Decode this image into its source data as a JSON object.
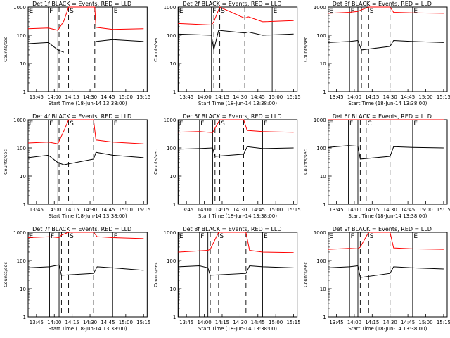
{
  "chart_data": [
    {
      "type": "line",
      "title": "Det 1f BLACK = Events, RED = LLD",
      "xlabel": "Start Time (18-Jun-14 13:38:00)",
      "ylabel": "Counts/sec",
      "xticks": [
        "13:45",
        "14:00",
        "14:15",
        "14:30",
        "14:45",
        "15:00",
        "15:15"
      ],
      "ylog": true,
      "ylim": [
        1,
        1000
      ],
      "yticks": [
        "1",
        "10",
        "100",
        "1000"
      ],
      "markers": [
        {
          "label": "E",
          "time": "13:38",
          "style": "solid"
        },
        {
          "label": "F",
          "time": "13:55",
          "style": "solid"
        },
        {
          "label": "",
          "time": "14:03",
          "style": "solid"
        },
        {
          "label": "",
          "time": "14:04",
          "style": "dashed"
        },
        {
          "label": "S",
          "time": "14:12",
          "style": "dashed"
        },
        {
          "label": "",
          "time": "14:34",
          "style": "dashed"
        },
        {
          "label": "E",
          "time": "14:49",
          "style": "solid"
        }
      ],
      "series": [
        {
          "color": "#ff0000",
          "time": [
            "13:38",
            "13:55",
            "14:03",
            "14:08",
            "14:12",
            "14:13",
            "14:34",
            "14:35",
            "14:49",
            "15:15"
          ],
          "values": [
            170,
            180,
            150,
            320,
            1000,
            1000,
            1000,
            190,
            160,
            170
          ]
        },
        {
          "color": "#000000",
          "time": [
            "13:38",
            "13:55",
            "14:03",
            "14:08",
            "14:12",
            "14:34",
            "14:35",
            "14:49",
            "15:15"
          ],
          "values": [
            50,
            55,
            30,
            25,
            null,
            null,
            60,
            70,
            60
          ]
        }
      ]
    },
    {
      "type": "line",
      "title": "Det 2f BLACK = Events, RED = LLD",
      "xlabel": "Start Time (18-Jun-14 13:38:00)",
      "ylabel": "Counts/sec",
      "xticks": [
        "13:45",
        "14:00",
        "14:15",
        "14:30",
        "14:45",
        "15:00",
        "15:15"
      ],
      "ylog": true,
      "ylim": [
        1,
        1000
      ],
      "yticks": [
        "1",
        "10",
        "100",
        "1000"
      ],
      "markers": [
        {
          "label": "E",
          "time": "13:38",
          "style": "solid"
        },
        {
          "label": "F",
          "time": "14:06",
          "style": "solid"
        },
        {
          "label": "",
          "time": "14:08",
          "style": "dashed"
        },
        {
          "label": "S",
          "time": "14:13",
          "style": "dashed"
        },
        {
          "label": "",
          "time": "14:34",
          "style": "dashed"
        },
        {
          "label": "E",
          "time": "14:57",
          "style": "solid"
        }
      ],
      "series": [
        {
          "color": "#ff0000",
          "time": [
            "13:38",
            "14:06",
            "14:08",
            "14:12",
            "14:13",
            "14:34",
            "14:37",
            "14:49",
            "15:15"
          ],
          "values": [
            260,
            230,
            300,
            800,
            1000,
            400,
            450,
            300,
            330
          ]
        },
        {
          "color": "#000000",
          "time": [
            "13:38",
            "14:06",
            "14:08",
            "14:12",
            "14:34",
            "14:37",
            "14:49",
            "15:15"
          ],
          "values": [
            110,
            100,
            30,
            150,
            120,
            130,
            100,
            110
          ]
        }
      ]
    },
    {
      "type": "line",
      "title": "Det 3f BLACK = Events, RED = LLD",
      "xlabel": "Start Time (18-Jun-14 13:38:00)",
      "ylabel": "Counts/sec",
      "xticks": [
        "13:45",
        "14:00",
        "14:15",
        "14:30",
        "14:45",
        "15:00",
        "15:15"
      ],
      "ylog": true,
      "ylim": [
        1,
        1000
      ],
      "yticks": [
        "1",
        "10",
        "100",
        "1000"
      ],
      "markers": [
        {
          "label": "E",
          "time": "13:38",
          "style": "solid"
        },
        {
          "label": "F",
          "time": "13:56",
          "style": "solid"
        },
        {
          "label": "",
          "time": "14:03",
          "style": "solid"
        },
        {
          "label": "",
          "time": "14:06",
          "style": "dashed"
        },
        {
          "label": "S",
          "time": "14:12",
          "style": "dashed"
        },
        {
          "label": "",
          "time": "14:30",
          "style": "dashed"
        },
        {
          "label": "E",
          "time": "14:49",
          "style": "solid"
        }
      ],
      "series": [
        {
          "color": "#ff0000",
          "time": [
            "13:38",
            "13:56",
            "14:03",
            "14:06",
            "14:12",
            "14:30",
            "14:33",
            "14:49",
            "15:15"
          ],
          "values": [
            600,
            650,
            700,
            800,
            1000,
            1000,
            650,
            620,
            600
          ]
        },
        {
          "color": "#000000",
          "time": [
            "13:38",
            "13:56",
            "14:03",
            "14:06",
            "14:30",
            "14:33",
            "14:49",
            "15:15"
          ],
          "values": [
            55,
            60,
            65,
            30,
            40,
            65,
            60,
            55
          ]
        }
      ]
    },
    {
      "type": "line",
      "title": "Det 4f BLACK = Events, RED = LLD",
      "xlabel": "Start Time (18-Jun-14 13:38:00)",
      "ylabel": "Counts/sec",
      "xticks": [
        "13:45",
        "14:00",
        "14:15",
        "14:30",
        "14:45",
        "15:00",
        "15:15"
      ],
      "ylog": true,
      "ylim": [
        1,
        1000
      ],
      "yticks": [
        "1",
        "10",
        "100",
        "1000"
      ],
      "markers": [
        {
          "label": "E",
          "time": "13:38",
          "style": "solid"
        },
        {
          "label": "F",
          "time": "13:55",
          "style": "solid"
        },
        {
          "label": "",
          "time": "14:03",
          "style": "solid"
        },
        {
          "label": "",
          "time": "14:04",
          "style": "dashed"
        },
        {
          "label": "S",
          "time": "14:12",
          "style": "dashed"
        },
        {
          "label": "",
          "time": "14:33",
          "style": "dashed"
        },
        {
          "label": "E",
          "time": "14:49",
          "style": "solid"
        }
      ],
      "series": [
        {
          "color": "#ff0000",
          "time": [
            "13:38",
            "13:55",
            "14:03",
            "14:08",
            "14:12",
            "14:33",
            "14:35",
            "14:49",
            "15:15"
          ],
          "values": [
            150,
            160,
            140,
            400,
            1000,
            1000,
            190,
            160,
            140
          ]
        },
        {
          "color": "#000000",
          "time": [
            "13:38",
            "13:55",
            "14:03",
            "14:08",
            "14:33",
            "14:35",
            "14:49",
            "15:15"
          ],
          "values": [
            45,
            55,
            30,
            25,
            40,
            70,
            55,
            45
          ]
        }
      ]
    },
    {
      "type": "line",
      "title": "Det 5f BLACK = Events, RED = LLD",
      "xlabel": "Start Time (18-Jun-14 13:38:00)",
      "ylabel": "Counts/sec",
      "xticks": [
        "13:45",
        "14:00",
        "14:15",
        "14:30",
        "14:45",
        "15:00",
        "15:15"
      ],
      "ylog": true,
      "ylim": [
        1,
        1000
      ],
      "yticks": [
        "1",
        "10",
        "100",
        "1000"
      ],
      "markers": [
        {
          "label": "E",
          "time": "13:38",
          "style": "solid"
        },
        {
          "label": "F",
          "time": "13:56",
          "style": "solid"
        },
        {
          "label": "",
          "time": "14:07",
          "style": "solid"
        },
        {
          "label": "",
          "time": "14:09",
          "style": "dashed"
        },
        {
          "label": "S",
          "time": "14:13",
          "style": "dashed"
        },
        {
          "label": "",
          "time": "14:33",
          "style": "dashed"
        },
        {
          "label": "E",
          "time": "14:49",
          "style": "solid"
        }
      ],
      "series": [
        {
          "color": "#ff0000",
          "time": [
            "13:38",
            "13:56",
            "14:07",
            "14:09",
            "14:13",
            "14:33",
            "14:36",
            "14:49",
            "15:15"
          ],
          "values": [
            360,
            380,
            350,
            500,
            1000,
            1000,
            420,
            380,
            360
          ]
        },
        {
          "color": "#000000",
          "time": [
            "13:38",
            "13:56",
            "14:07",
            "14:09",
            "14:33",
            "14:36",
            "14:49",
            "15:15"
          ],
          "values": [
            90,
            95,
            100,
            50,
            60,
            110,
            95,
            100
          ]
        }
      ]
    },
    {
      "type": "line",
      "title": "Det 6f BLACK = Events, RED = LLD",
      "xlabel": "Start Time (18-Jun-14 13:38:00)",
      "ylabel": "Counts/sec",
      "xticks": [
        "13:45",
        "14:00",
        "14:15",
        "14:30",
        "14:45",
        "15:00",
        "15:15"
      ],
      "ylog": true,
      "ylim": [
        1,
        1000
      ],
      "yticks": [
        "1",
        "10",
        "100",
        "1000"
      ],
      "markers": [
        {
          "label": "E",
          "time": "13:38",
          "style": "solid"
        },
        {
          "label": "F",
          "time": "13:55",
          "style": "solid"
        },
        {
          "label": "",
          "time": "14:03",
          "style": "solid"
        },
        {
          "label": "",
          "time": "14:05",
          "style": "dashed"
        },
        {
          "label": "C",
          "time": "14:10",
          "style": "dashed"
        },
        {
          "label": "",
          "time": "14:30",
          "style": "dashed"
        },
        {
          "label": "E",
          "time": "14:49",
          "style": "solid"
        }
      ],
      "series": [
        {
          "color": "#ff0000",
          "time": [
            "13:38",
            "15:15"
          ],
          "values": [
            1000,
            1000
          ]
        },
        {
          "color": "#000000",
          "time": [
            "13:38",
            "13:55",
            "14:03",
            "14:05",
            "14:30",
            "14:33",
            "14:49",
            "15:15"
          ],
          "values": [
            105,
            120,
            115,
            40,
            50,
            110,
            105,
            100
          ]
        }
      ]
    },
    {
      "type": "line",
      "title": "Det 7f BLACK = Events, RED = LLD",
      "xlabel": "Start Time (18-Jun-14 13:38:00)",
      "ylabel": "Counts/sec",
      "xticks": [
        "13:45",
        "14:00",
        "14:15",
        "14:30",
        "14:45",
        "15:00",
        "15:15"
      ],
      "ylog": true,
      "ylim": [
        1,
        1000
      ],
      "yticks": [
        "1",
        "10",
        "100",
        "1000"
      ],
      "markers": [
        {
          "label": "E",
          "time": "13:38",
          "style": "solid"
        },
        {
          "label": "F",
          "time": "13:56",
          "style": "solid"
        },
        {
          "label": "",
          "time": "14:04",
          "style": "solid"
        },
        {
          "label": "",
          "time": "14:06",
          "style": "dashed"
        },
        {
          "label": "S",
          "time": "14:12",
          "style": "dashed"
        },
        {
          "label": "",
          "time": "14:33",
          "style": "dashed"
        },
        {
          "label": "E",
          "time": "14:49",
          "style": "solid"
        }
      ],
      "series": [
        {
          "color": "#ff0000",
          "time": [
            "13:38",
            "13:56",
            "14:04",
            "14:06",
            "14:12",
            "14:33",
            "14:36",
            "14:49",
            "15:15"
          ],
          "values": [
            650,
            700,
            650,
            800,
            1000,
            1000,
            700,
            650,
            600
          ]
        },
        {
          "color": "#000000",
          "time": [
            "13:38",
            "13:56",
            "14:04",
            "14:06",
            "14:33",
            "14:36",
            "14:49",
            "15:15"
          ],
          "values": [
            55,
            60,
            70,
            30,
            35,
            60,
            55,
            45
          ]
        }
      ]
    },
    {
      "type": "line",
      "title": "Det 8f BLACK = Events, RED = LLD",
      "xlabel": "Start Time (18-Jun-14 13:38:00)",
      "ylabel": "Counts/sec",
      "xticks": [
        "13:45",
        "14:00",
        "14:15",
        "14:30",
        "14:45",
        "15:00",
        "15:15"
      ],
      "ylog": true,
      "ylim": [
        1,
        1000
      ],
      "yticks": [
        "1",
        "10",
        "100",
        "1000"
      ],
      "markers": [
        {
          "label": "E",
          "time": "13:38",
          "style": "solid"
        },
        {
          "label": "F",
          "time": "13:56",
          "style": "solid"
        },
        {
          "label": "",
          "time": "14:03",
          "style": "solid"
        },
        {
          "label": "",
          "time": "14:05",
          "style": "dashed"
        },
        {
          "label": "S",
          "time": "14:12",
          "style": "dashed"
        },
        {
          "label": "",
          "time": "14:35",
          "style": "dashed"
        },
        {
          "label": "E",
          "time": "14:49",
          "style": "solid"
        }
      ],
      "series": [
        {
          "color": "#ff0000",
          "time": [
            "13:38",
            "13:56",
            "14:03",
            "14:05",
            "14:12",
            "14:35",
            "14:38",
            "14:49",
            "15:15"
          ],
          "values": [
            200,
            220,
            230,
            250,
            1000,
            1000,
            230,
            200,
            190
          ]
        },
        {
          "color": "#000000",
          "time": [
            "13:38",
            "13:56",
            "14:03",
            "14:05",
            "14:35",
            "14:38",
            "14:49",
            "15:15"
          ],
          "values": [
            60,
            65,
            55,
            30,
            35,
            65,
            60,
            55
          ]
        }
      ]
    },
    {
      "type": "line",
      "title": "Det 9f BLACK = Events, RED = LLD",
      "xlabel": "Start Time (18-Jun-14 13:38:00)",
      "ylabel": "Counts/sec",
      "xticks": [
        "13:45",
        "14:00",
        "14:15",
        "14:30",
        "14:45",
        "15:00",
        "15:15"
      ],
      "ylog": true,
      "ylim": [
        1,
        1000
      ],
      "yticks": [
        "1",
        "10",
        "100",
        "1000"
      ],
      "markers": [
        {
          "label": "E",
          "time": "13:38",
          "style": "solid"
        },
        {
          "label": "F",
          "time": "13:56",
          "style": "solid"
        },
        {
          "label": "",
          "time": "14:03",
          "style": "solid"
        },
        {
          "label": "",
          "time": "14:05",
          "style": "dashed"
        },
        {
          "label": "S",
          "time": "14:12",
          "style": "dashed"
        },
        {
          "label": "",
          "time": "14:30",
          "style": "dashed"
        },
        {
          "label": "E",
          "time": "14:49",
          "style": "solid"
        }
      ],
      "series": [
        {
          "color": "#ff0000",
          "time": [
            "13:38",
            "13:56",
            "14:03",
            "14:05",
            "14:12",
            "14:30",
            "14:33",
            "14:49",
            "15:15"
          ],
          "values": [
            250,
            270,
            260,
            300,
            1000,
            1000,
            280,
            260,
            250
          ]
        },
        {
          "color": "#000000",
          "time": [
            "13:38",
            "13:56",
            "14:03",
            "14:05",
            "14:30",
            "14:33",
            "14:49",
            "15:15"
          ],
          "values": [
            55,
            60,
            65,
            25,
            35,
            60,
            55,
            50
          ]
        }
      ]
    }
  ]
}
